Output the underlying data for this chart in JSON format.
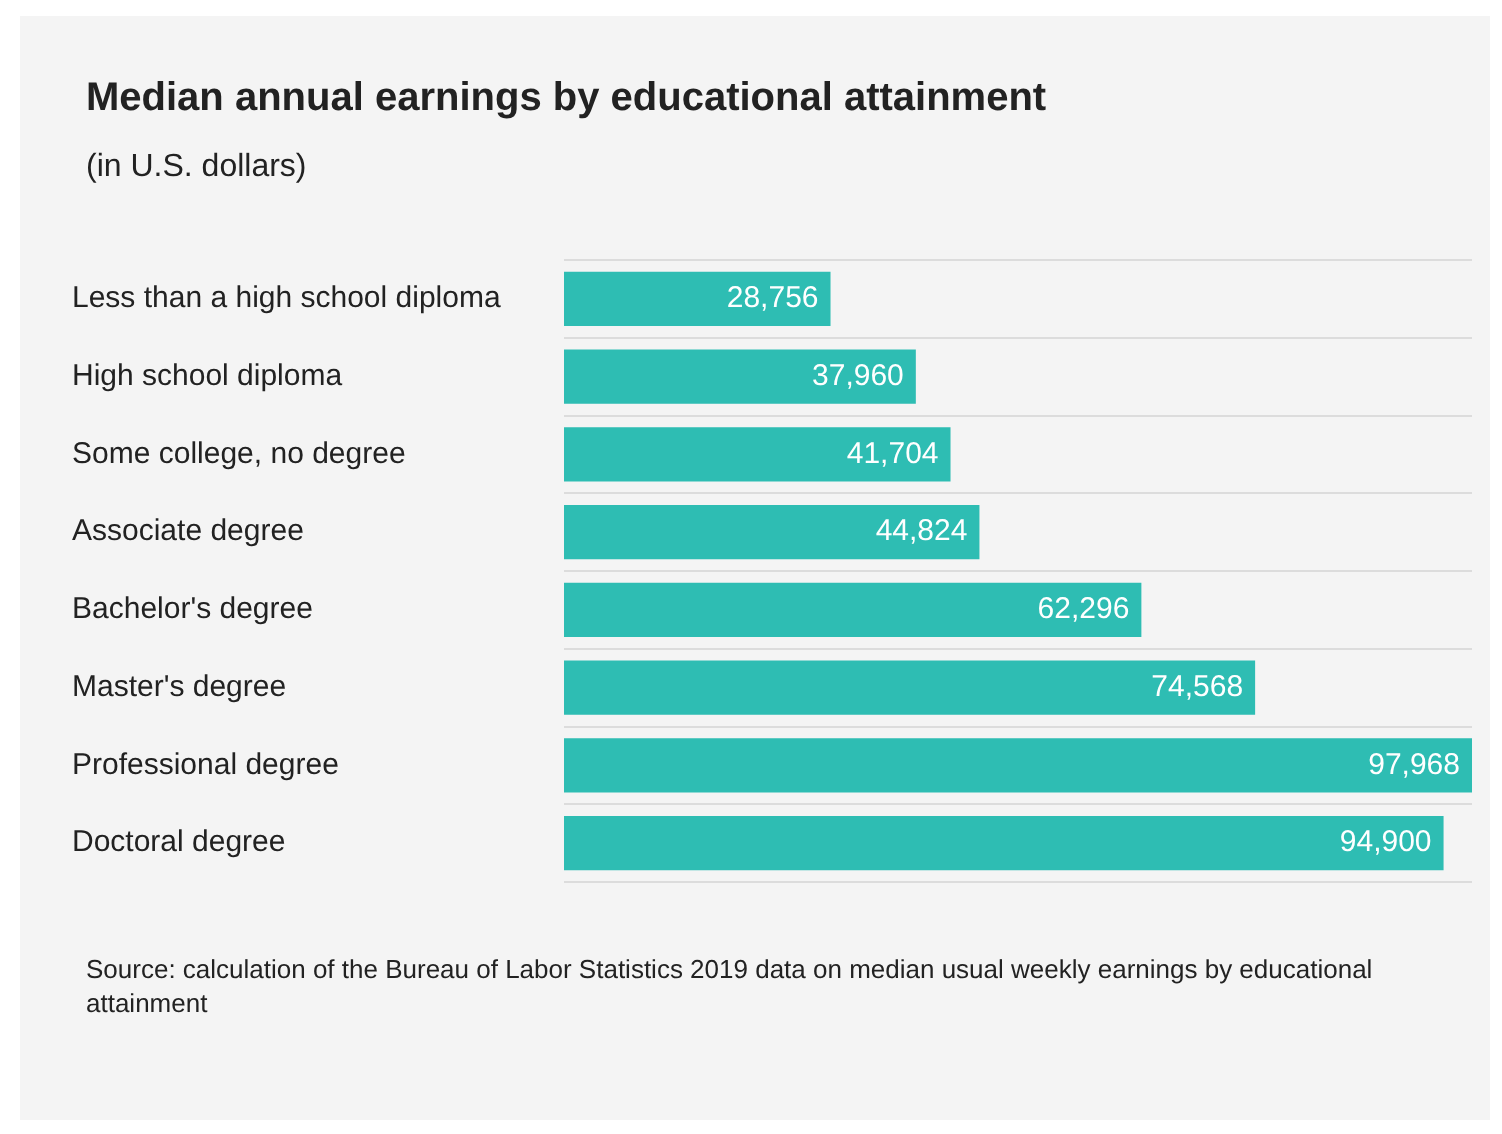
{
  "chart_data": {
    "type": "bar",
    "orientation": "horizontal",
    "title": "Median annual earnings by educational attainment",
    "subtitle": "(in U.S. dollars)",
    "categories": [
      "Less than a high school diploma",
      "High school diploma",
      "Some college, no degree",
      "Associate degree",
      "Bachelor's degree",
      "Master's degree",
      "Professional degree",
      "Doctoral degree"
    ],
    "values": [
      28756,
      37960,
      41704,
      44824,
      62296,
      74568,
      97968,
      94900
    ],
    "value_labels": [
      "28,756",
      "37,960",
      "41,704",
      "44,824",
      "62,296",
      "74,568",
      "97,968",
      "94,900"
    ],
    "color": "#2ebdb3",
    "grid": "y",
    "legend": false,
    "annotations": [
      "Source: calculation of the Bureau of Labor Statistics 2019 data on median usual weekly earnings by educational attainment"
    ]
  }
}
